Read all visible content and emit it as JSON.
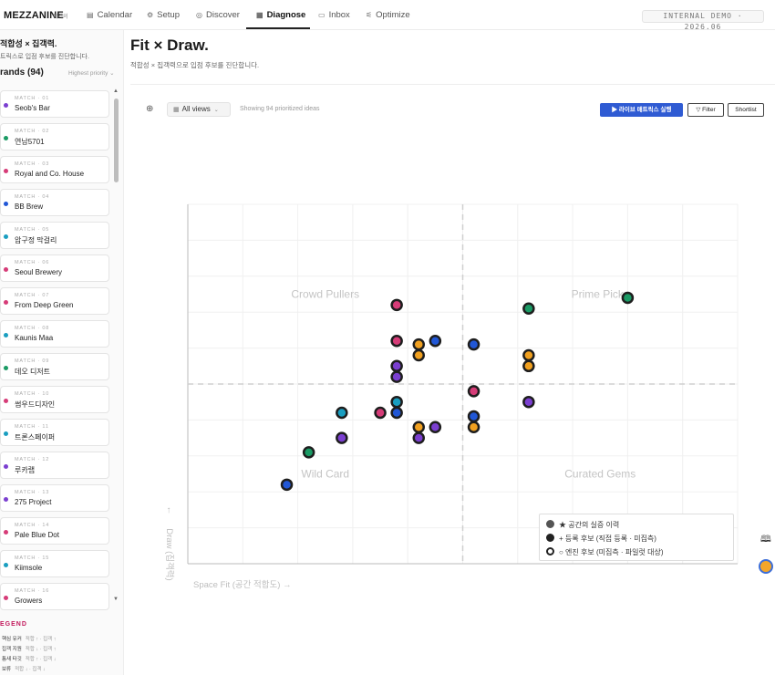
{
  "topbar": {
    "brand": "MEZZANINE",
    "brand_sub": "복기의",
    "tabs": [
      {
        "label": "Calendar",
        "icon": "▤"
      },
      {
        "label": "Setup",
        "icon": "⚙"
      },
      {
        "label": "Discover",
        "icon": "◎"
      },
      {
        "label": "Diagnose",
        "icon": "▦"
      },
      {
        "label": "Inbox",
        "icon": "▭"
      },
      {
        "label": "Optimize",
        "icon": "⚟"
      }
    ],
    "active_tab": "Diagnose",
    "demo_badge": "INTERNAL DEMO · 2026.06"
  },
  "sidebar": {
    "title": "적합성 × 집객력.",
    "subtitle": "트릭스로 입점 후보를 진단합니다.",
    "count_label": "rands (94)",
    "sort_label": "Highest priority ⌄",
    "items": [
      {
        "tag": "MATCH · 01",
        "name": "Seob's Bar",
        "color": "#7b3fd0"
      },
      {
        "tag": "MATCH · 02",
        "name": "연남5701",
        "color": "#1a9a64"
      },
      {
        "tag": "MATCH · 03",
        "name": "Royal and Co. House",
        "color": "#d63c78"
      },
      {
        "tag": "MATCH · 04",
        "name": "BB Brew",
        "color": "#2157d6"
      },
      {
        "tag": "MATCH · 05",
        "name": "압구정 막걸리",
        "color": "#1a9ec0"
      },
      {
        "tag": "MATCH · 06",
        "name": "Seoul Brewery",
        "color": "#d63c78"
      },
      {
        "tag": "MATCH · 07",
        "name": "From Deep Green",
        "color": "#d63c78"
      },
      {
        "tag": "MATCH · 08",
        "name": "Kaunis Maa",
        "color": "#1a9ec0"
      },
      {
        "tag": "MATCH · 09",
        "name": "데오 디저트",
        "color": "#1a9a64"
      },
      {
        "tag": "MATCH · 10",
        "name": "썸우드디자인",
        "color": "#d63c78"
      },
      {
        "tag": "MATCH · 11",
        "name": "트론스페이퍼",
        "color": "#1a9ec0"
      },
      {
        "tag": "MATCH · 12",
        "name": "루카랩",
        "color": "#7b3fd0"
      },
      {
        "tag": "MATCH · 13",
        "name": "275 Project",
        "color": "#7b3fd0"
      },
      {
        "tag": "MATCH · 14",
        "name": "Pale Blue Dot",
        "color": "#d63c78"
      },
      {
        "tag": "MATCH · 15",
        "name": "Kiimsole",
        "color": "#1a9ec0"
      },
      {
        "tag": "MATCH · 16",
        "name": "Growers",
        "color": "#d63c78"
      }
    ],
    "legend_title": "EGEND",
    "legend": [
      {
        "label": "핵심 유커",
        "hint": "적합 ↑ · 집객 ↑"
      },
      {
        "label": "집객 지원",
        "hint": "적합 ↓ · 집객 ↑"
      },
      {
        "label": "틈새 타깃",
        "hint": "적합 ↑ · 집객 ↓"
      },
      {
        "label": "보류",
        "hint": "적합 ↓ · 집객 ↓"
      }
    ]
  },
  "main": {
    "title": "Fit × Draw.",
    "subtitle": "적합성 × 집객력으로 입점 후보를 진단합니다.",
    "toolbar": {
      "target_icon": "⊕",
      "views_label": "All views",
      "showing": "Showing 94 prioritized ideas",
      "run_label": "▶ 라이브 매트릭스 실행",
      "filter_label": "▽ Filter",
      "shortlist_label": "Shortlist"
    }
  },
  "chart_data": {
    "type": "scatter",
    "title": "",
    "xlabel": "Space Fit (공간 적합도) →",
    "ylabel": "Draw (집객력)",
    "y_arrow": "↑",
    "xlim": [
      0,
      100
    ],
    "ylim": [
      0,
      100
    ],
    "grid": true,
    "divider": {
      "x": 50,
      "y": 50
    },
    "quadrants": {
      "top_left": "Crowd Pullers",
      "top_right": "Prime Picks",
      "bottom_left": "Wild Card",
      "bottom_right": "Curated Gems"
    },
    "colors": {
      "purple": "#7b3fd0",
      "green": "#1a9a64",
      "pink": "#d63c78",
      "blue": "#2157d6",
      "cyan": "#1a9ec0",
      "orange": "#f0a020"
    },
    "points": [
      {
        "x": 38,
        "y": 72,
        "color": "#d63c78"
      },
      {
        "x": 62,
        "y": 71,
        "color": "#1a9a64"
      },
      {
        "x": 80,
        "y": 74,
        "color": "#1a9a64"
      },
      {
        "x": 38,
        "y": 62,
        "color": "#d63c78"
      },
      {
        "x": 42,
        "y": 61,
        "color": "#f0a020"
      },
      {
        "x": 45,
        "y": 62,
        "color": "#2157d6"
      },
      {
        "x": 52,
        "y": 61,
        "color": "#2157d6"
      },
      {
        "x": 42,
        "y": 58,
        "color": "#f0a020"
      },
      {
        "x": 62,
        "y": 58,
        "color": "#f0a020"
      },
      {
        "x": 62,
        "y": 55,
        "color": "#f0a020"
      },
      {
        "x": 38,
        "y": 55,
        "color": "#7b3fd0"
      },
      {
        "x": 38,
        "y": 52,
        "color": "#7b3fd0"
      },
      {
        "x": 52,
        "y": 48,
        "color": "#d63c78"
      },
      {
        "x": 62,
        "y": 45,
        "color": "#7b3fd0"
      },
      {
        "x": 38,
        "y": 45,
        "color": "#1a9ec0"
      },
      {
        "x": 28,
        "y": 42,
        "color": "#1a9ec0"
      },
      {
        "x": 35,
        "y": 42,
        "color": "#d63c78"
      },
      {
        "x": 38,
        "y": 42,
        "color": "#2157d6"
      },
      {
        "x": 52,
        "y": 41,
        "color": "#2157d6"
      },
      {
        "x": 52,
        "y": 38,
        "color": "#f0a020"
      },
      {
        "x": 42,
        "y": 38,
        "color": "#f0a020"
      },
      {
        "x": 45,
        "y": 38,
        "color": "#7b3fd0"
      },
      {
        "x": 28,
        "y": 35,
        "color": "#7b3fd0"
      },
      {
        "x": 42,
        "y": 35,
        "color": "#7b3fd0"
      },
      {
        "x": 22,
        "y": 31,
        "color": "#1a9a64"
      },
      {
        "x": 18,
        "y": 22,
        "color": "#2157d6"
      }
    ],
    "legend": [
      {
        "label": "★ 공간의 실증 이력",
        "style": "filled-grey"
      },
      {
        "label": "+ 등록 후보 (직접 등록 · 미집측)",
        "style": "filled-dark"
      },
      {
        "label": "○ 엔진 후보 (미집측 · 파일럿 대상)",
        "style": "hollow"
      }
    ],
    "legend_position": "bottom-right"
  }
}
